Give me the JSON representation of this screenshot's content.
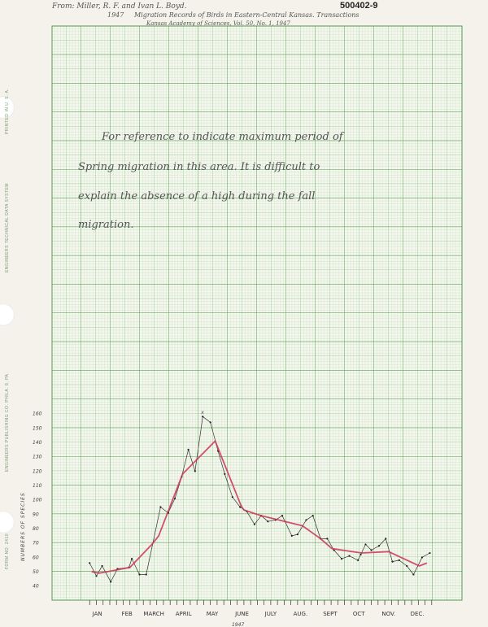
{
  "header": {
    "citation_line1": "From: Miller, R. F. and Ivan L. Boyd.",
    "citation_year": "1947",
    "citation_line2": "Migration Records of Birds in Eastern-Central Kansas. Transactions",
    "citation_line3": "Kansas Academy of Sciences, Vol. 50, No. 1, 1947",
    "document_number": "500402-9"
  },
  "margin_print": {
    "printed": "PRINTED IN U. S. A.",
    "system": "ENGINEERS TECHNICAL DATA SYSTEM",
    "publisher": "ENGINEERS PUBLISHING CO. PHILA. 8, PA.",
    "form": "FORM NO. 2410"
  },
  "note": {
    "line1": "For reference to indicate maximum period of",
    "line2": "Spring migration in this area.  It is difficult to",
    "line3": "explain the absence of a high during the fall",
    "line4": "migration."
  },
  "colors": {
    "grid": "#5aa05a",
    "grid_minor": "#9fcf9f",
    "observed_line": "#333333",
    "trend_line": "#cc3355",
    "paper": "#f4f2eb"
  },
  "chart_data": {
    "type": "line",
    "title": "",
    "xlabel": "1947",
    "ylabel": "NUMBERS OF SPECIES",
    "ylim": [
      30,
      170
    ],
    "y_ticks": [
      "40",
      "50",
      "60",
      "70",
      "80",
      "90",
      "100",
      "110",
      "120",
      "130",
      "140",
      "150",
      "160"
    ],
    "x_tick_labels": [
      "JAN",
      "FEB",
      "MARCH",
      "APRIL",
      "MAY",
      "JUNE",
      "JULY",
      "AUG.",
      "SEPT",
      "OCT",
      "NOV.",
      "DEC."
    ],
    "grid": true,
    "annotation": "x",
    "series": [
      {
        "style": "observed",
        "points": [
          [
            "1947-01-08",
            56
          ],
          [
            "1947-01-15",
            47
          ],
          [
            "1947-01-21",
            54
          ],
          [
            "1947-01-30",
            43
          ],
          [
            "1947-02-06",
            52
          ],
          [
            "1947-02-18",
            53
          ],
          [
            "1947-02-21",
            59
          ],
          [
            "1947-03-01",
            48
          ],
          [
            "1947-03-08",
            48
          ],
          [
            "1947-03-23",
            95
          ],
          [
            "1947-03-31",
            91
          ],
          [
            "1947-04-07",
            101
          ],
          [
            "1947-04-14",
            116
          ],
          [
            "1947-04-21",
            135
          ],
          [
            "1947-04-28",
            120
          ],
          [
            "1947-05-06",
            158
          ],
          [
            "1947-05-14",
            154
          ],
          [
            "1947-05-22",
            134
          ],
          [
            "1947-05-29",
            118
          ],
          [
            "1947-06-06",
            102
          ],
          [
            "1947-06-14",
            95
          ],
          [
            "1947-06-21",
            92
          ],
          [
            "1947-06-29",
            83
          ],
          [
            "1947-07-06",
            89
          ],
          [
            "1947-07-13",
            85
          ],
          [
            "1947-07-21",
            86
          ],
          [
            "1947-07-28",
            89
          ],
          [
            "1947-08-07",
            75
          ],
          [
            "1947-08-13",
            76
          ],
          [
            "1947-08-22",
            86
          ],
          [
            "1947-08-29",
            89
          ],
          [
            "1947-09-06",
            73
          ],
          [
            "1947-09-13",
            73
          ],
          [
            "1947-09-20",
            65
          ],
          [
            "1947-09-28",
            59
          ],
          [
            "1947-10-06",
            61
          ],
          [
            "1947-10-15",
            58
          ],
          [
            "1947-10-18",
            62
          ],
          [
            "1947-10-23",
            69
          ],
          [
            "1947-10-29",
            65
          ],
          [
            "1947-11-06",
            68
          ],
          [
            "1947-11-13",
            73
          ],
          [
            "1947-11-20",
            57
          ],
          [
            "1947-11-27",
            58
          ],
          [
            "1947-12-05",
            54
          ],
          [
            "1947-12-12",
            48
          ],
          [
            "1947-12-21",
            60
          ],
          [
            "1947-12-29",
            63
          ]
        ]
      },
      {
        "style": "trend",
        "points": [
          [
            "1947-01-10",
            50
          ],
          [
            "1947-01-18",
            49
          ],
          [
            "1947-02-19",
            53
          ],
          [
            "1947-03-14",
            69
          ],
          [
            "1947-03-21",
            75
          ],
          [
            "1947-04-15",
            118
          ],
          [
            "1947-05-19",
            141
          ],
          [
            "1947-06-15",
            96
          ],
          [
            "1947-06-18",
            93
          ],
          [
            "1947-07-06",
            89
          ],
          [
            "1947-08-18",
            82
          ],
          [
            "1947-09-06",
            73
          ],
          [
            "1947-09-18",
            66
          ],
          [
            "1947-10-19",
            63
          ],
          [
            "1947-11-16",
            64
          ],
          [
            "1947-12-18",
            54
          ],
          [
            "1947-12-26",
            56
          ]
        ]
      }
    ],
    "annotation_point": [
      "1947-05-06",
      161
    ]
  }
}
